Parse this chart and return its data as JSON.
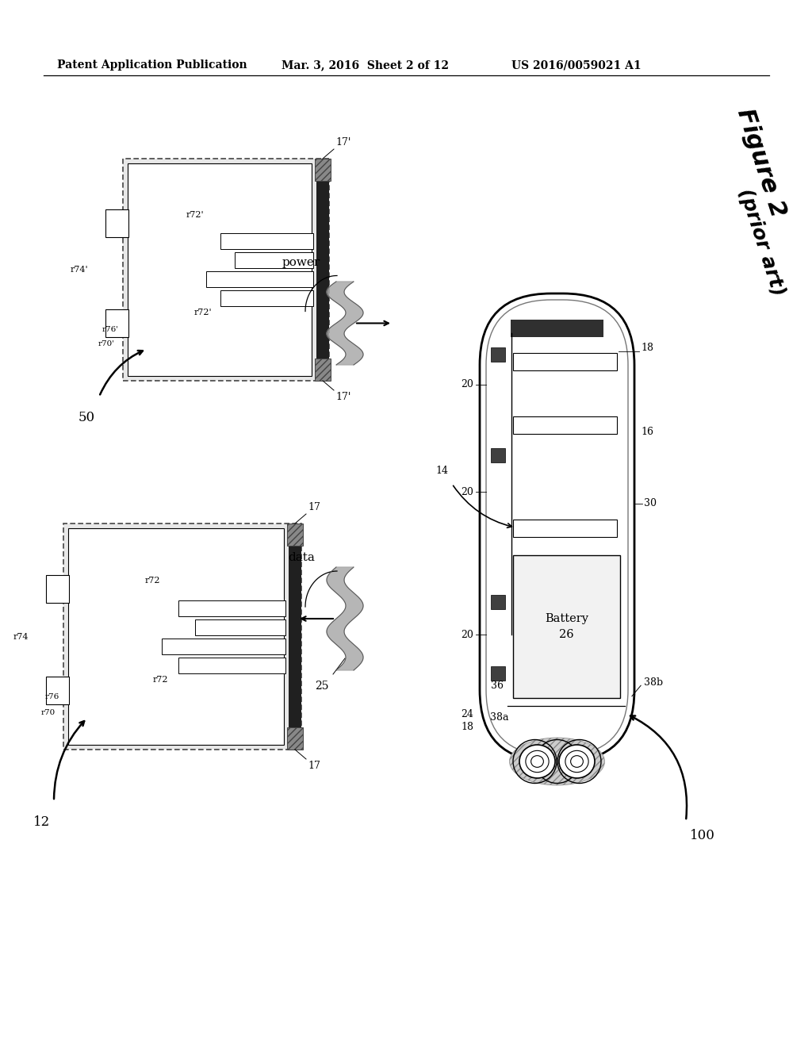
{
  "bg_color": "#ffffff",
  "header_left": "Patent Application Publication",
  "header_mid": "Mar. 3, 2016  Sheet 2 of 12",
  "header_right": "US 2016/0059021 A1",
  "fig1": "Figure 2",
  "fig2": "(prior art)",
  "lbl_50": "50",
  "lbl_12": "12",
  "lbl_100": "100",
  "lbl_power": "power",
  "lbl_data": "data",
  "lbl_25": "25",
  "lbl_battery": "Battery",
  "lbl_26": "26",
  "lbl_30": "30",
  "lbl_38b": "38b",
  "lbl_38a": "38a"
}
